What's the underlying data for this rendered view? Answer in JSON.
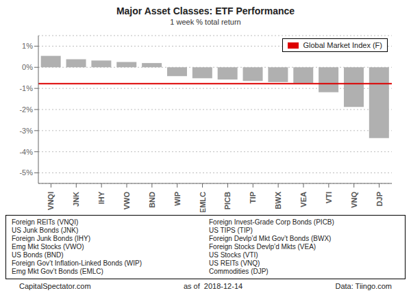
{
  "chart_data": {
    "type": "bar",
    "title": "Major Asset Classes: ETF Performance",
    "subtitle": "1 week % total return",
    "categories": [
      "VNQI",
      "JNK",
      "IHY",
      "VWO",
      "BND",
      "WIP",
      "EMLC",
      "PICB",
      "TIP",
      "BWX",
      "VEA",
      "VTI",
      "VNQ",
      "DJP"
    ],
    "values": [
      0.54,
      0.38,
      0.32,
      0.25,
      0.2,
      -0.42,
      -0.52,
      -0.58,
      -0.65,
      -0.7,
      -0.75,
      -1.18,
      -1.88,
      -3.35
    ],
    "color": "#b0b0b0",
    "ylim": [
      -5.5,
      1.5
    ],
    "yticks": [
      {
        "value": 1,
        "label": "1%"
      },
      {
        "value": 0,
        "label": "0%"
      },
      {
        "value": -1,
        "label": "-1%"
      },
      {
        "value": -2,
        "label": "-2%"
      },
      {
        "value": -3,
        "label": "-3%"
      },
      {
        "value": -4,
        "label": "-4%"
      },
      {
        "value": -5,
        "label": "-5%"
      }
    ],
    "grid": true,
    "legend": "upper right",
    "reference_line": {
      "name": "Global Market Index (F)",
      "value": -0.78,
      "color": "#dd0000"
    },
    "annotations": {
      "left": [
        "Foreign REITs (VNQI)",
        "US Junk Bonds (JNK)",
        "Foreign Junk Bonds (IHY)",
        "Emg Mkt Stocks (VWO)",
        "US Bonds (BND)",
        "Foreign Gov’t Inflation-Linked Bonds (WIP)",
        "Emg Mkt Gov’t Bonds (EMLC)"
      ],
      "right": [
        "Foreign Invest-Grade Corp Bonds (PICB)",
        "US TIPS (TIP)",
        "Foreign Devlp’d Mkt Gov’t Bonds (BWX)",
        "Foreign Stocks Devlp’d Mkts (VEA)",
        "US Stocks (VTI)",
        "US REITs (VNQ)",
        "Commodities (DJP)"
      ]
    },
    "footer": [
      "CapitalSpectator.com",
      "as of  2018-12-14",
      "Data: Tiingo.com"
    ]
  }
}
